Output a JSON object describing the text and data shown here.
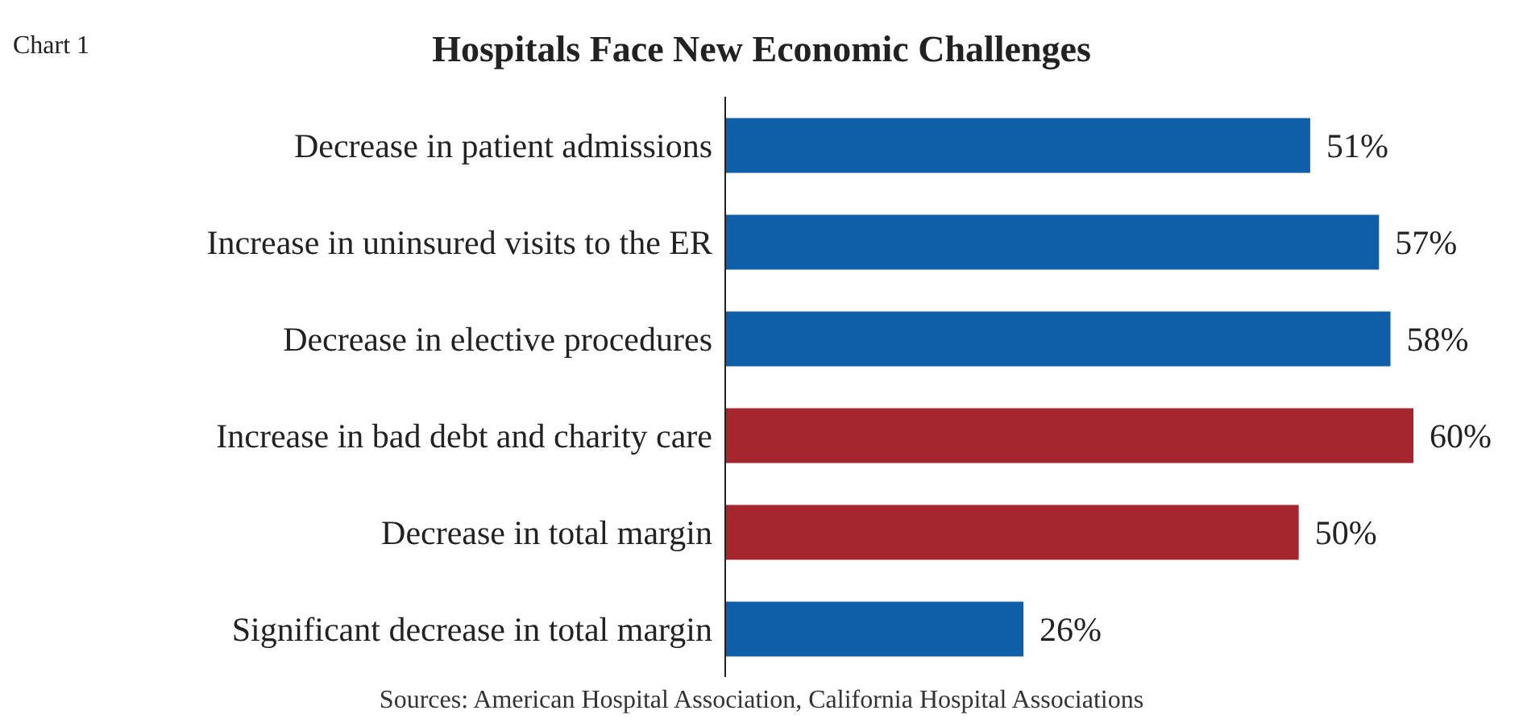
{
  "chart_data": {
    "type": "bar",
    "orientation": "horizontal",
    "title": "Hospitals Face New Economic Challenges",
    "annotations": [
      "Chart 1",
      "Sources: American Hospital Association, California Hospital Associations"
    ],
    "categories": [
      "Decrease in patient admissions",
      "Increase in uninsured visits to the ER",
      "Decrease in elective procedures",
      "Increase in bad debt and charity care",
      "Decrease in total margin",
      "Significant decrease in total margin"
    ],
    "values": [
      51,
      57,
      58,
      60,
      50,
      26
    ],
    "colors": [
      "#0e5ea8",
      "#0e5ea8",
      "#0e5ea8",
      "#a5272d",
      "#a5272d",
      "#0e5ea8"
    ],
    "value_labels": [
      "51%",
      "57%",
      "58%",
      "60%",
      "50%",
      "26%"
    ]
  }
}
